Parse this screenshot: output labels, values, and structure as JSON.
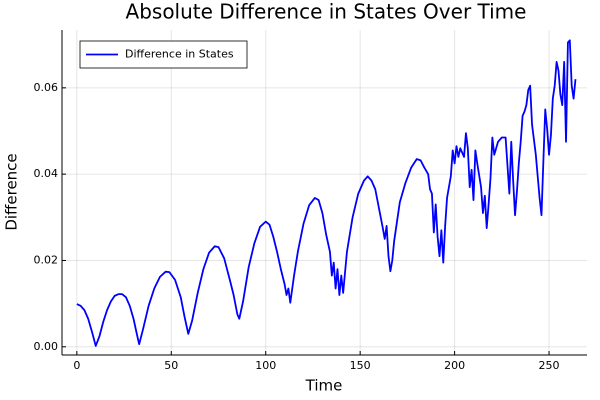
{
  "chart_data": {
    "type": "line",
    "title": "Absolute Difference in States Over Time",
    "x_label": "Time",
    "y_label": "Difference",
    "legend": "top-left",
    "grid": true,
    "xlim": [
      -7.86,
      270.1
    ],
    "ylim": [
      -0.0019,
      0.0734
    ],
    "xticks": [
      0,
      50,
      100,
      150,
      200,
      250
    ],
    "yticks": [
      {
        "value": 0,
        "label": "0.00"
      },
      {
        "value": 0.02,
        "label": "0.02"
      },
      {
        "value": 0.04,
        "label": "0.04"
      },
      {
        "value": 0.06,
        "label": "0.06"
      }
    ],
    "x": [
      0,
      2,
      4,
      6,
      8,
      10,
      12,
      14,
      16,
      18,
      20,
      22,
      24,
      26,
      28,
      30,
      32,
      33,
      35,
      38,
      41,
      44,
      47,
      49,
      52,
      55,
      57,
      59,
      61,
      64,
      67,
      70,
      73,
      75,
      78,
      81,
      83,
      85,
      86,
      88,
      91,
      94,
      97,
      100,
      102,
      104,
      106,
      108,
      110,
      111,
      112,
      113,
      115,
      117,
      120,
      123,
      126,
      128,
      130,
      132,
      134,
      135,
      136,
      137,
      138,
      139,
      140,
      141,
      143,
      146,
      149,
      152,
      154,
      156,
      158,
      160,
      162,
      163,
      164,
      165,
      166,
      167,
      168,
      171,
      174,
      177,
      180,
      182,
      184,
      186,
      187,
      188,
      189,
      190,
      191,
      192,
      193,
      194,
      195,
      196,
      198,
      199,
      200,
      201,
      202,
      203,
      205,
      206,
      207,
      208,
      209,
      210,
      211,
      212,
      214,
      215,
      216,
      217,
      218,
      219,
      220,
      221,
      223,
      225,
      227,
      228,
      229,
      230,
      231,
      232,
      233,
      234,
      235,
      236,
      237,
      238,
      239,
      240,
      241,
      242,
      243,
      244,
      245,
      246,
      247,
      248,
      249,
      250,
      251,
      252,
      253,
      254,
      255,
      256,
      257,
      258,
      259,
      260,
      261,
      262,
      263,
      264
    ],
    "series": [
      {
        "name": "Difference in States",
        "color": "#0000ff",
        "values": [
          0.0099,
          0.0095,
          0.0085,
          0.0065,
          0.0035,
          0.0002,
          0.0025,
          0.0058,
          0.0085,
          0.0105,
          0.0118,
          0.0122,
          0.0122,
          0.0115,
          0.0095,
          0.0065,
          0.0025,
          0.0006,
          0.004,
          0.0095,
          0.0135,
          0.0162,
          0.0174,
          0.0173,
          0.0155,
          0.0115,
          0.007,
          0.003,
          0.006,
          0.0125,
          0.018,
          0.0218,
          0.0233,
          0.0231,
          0.0205,
          0.0155,
          0.012,
          0.0075,
          0.0065,
          0.0105,
          0.0185,
          0.024,
          0.0278,
          0.029,
          0.0283,
          0.0255,
          0.022,
          0.018,
          0.0145,
          0.012,
          0.0135,
          0.0102,
          0.0165,
          0.022,
          0.0285,
          0.0328,
          0.0345,
          0.034,
          0.031,
          0.026,
          0.022,
          0.0165,
          0.0195,
          0.0135,
          0.018,
          0.012,
          0.0165,
          0.0125,
          0.022,
          0.03,
          0.0355,
          0.0385,
          0.0395,
          0.0385,
          0.0365,
          0.032,
          0.0275,
          0.025,
          0.028,
          0.021,
          0.0175,
          0.02,
          0.0245,
          0.0335,
          0.038,
          0.0415,
          0.0435,
          0.0432,
          0.0415,
          0.04,
          0.0365,
          0.0355,
          0.0265,
          0.033,
          0.0255,
          0.021,
          0.027,
          0.0195,
          0.028,
          0.0345,
          0.0395,
          0.0455,
          0.0425,
          0.0465,
          0.044,
          0.046,
          0.044,
          0.0495,
          0.046,
          0.037,
          0.041,
          0.034,
          0.0455,
          0.0425,
          0.037,
          0.031,
          0.035,
          0.0275,
          0.033,
          0.039,
          0.0485,
          0.0445,
          0.0475,
          0.0485,
          0.0485,
          0.042,
          0.0355,
          0.0475,
          0.0385,
          0.0305,
          0.036,
          0.0425,
          0.0475,
          0.0535,
          0.0545,
          0.056,
          0.0595,
          0.0605,
          0.0515,
          0.048,
          0.0445,
          0.0395,
          0.0345,
          0.0305,
          0.043,
          0.055,
          0.0505,
          0.0445,
          0.049,
          0.0575,
          0.0605,
          0.066,
          0.064,
          0.0585,
          0.056,
          0.066,
          0.0475,
          0.0705,
          0.071,
          0.0605,
          0.0575,
          0.062
        ]
      }
    ]
  }
}
